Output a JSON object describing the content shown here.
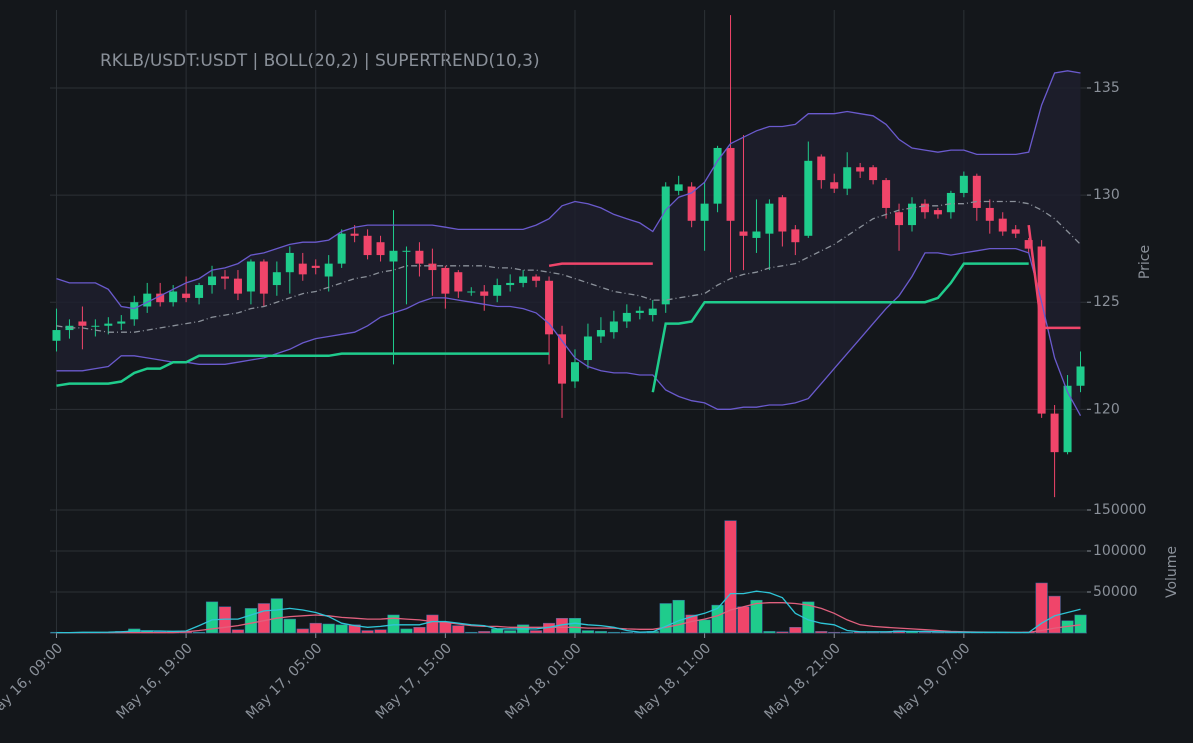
{
  "chart_data": [
    {
      "type": "candlestick",
      "title": "RKLB/USDT:USDT | BOLL(20,2) | SUPERTREND(10,3)",
      "y_label": "Price",
      "up_color": "#1fcc8c",
      "down_color": "#f0456a",
      "grid": true,
      "categories": [
        "May 16, 09:00",
        null,
        null,
        null,
        null,
        null,
        null,
        null,
        null,
        null,
        "May 16, 19:00",
        null,
        null,
        null,
        null,
        null,
        null,
        null,
        null,
        null,
        "May 17, 05:00",
        null,
        null,
        null,
        null,
        null,
        null,
        null,
        null,
        null,
        "May 17, 15:00",
        null,
        null,
        null,
        null,
        null,
        null,
        null,
        null,
        null,
        "May 18, 01:00",
        null,
        null,
        null,
        null,
        null,
        null,
        null,
        null,
        null,
        "May 18, 11:00",
        null,
        null,
        null,
        null,
        null,
        null,
        null,
        null,
        null,
        "May 18, 21:00",
        null,
        null,
        null,
        null,
        null,
        null,
        null,
        null,
        null,
        "May 19, 07:00",
        null,
        null,
        null,
        null,
        null,
        null,
        null,
        null,
        null
      ],
      "open": [
        123.2,
        123.7,
        124.1,
        123.9,
        123.9,
        124.0,
        124.2,
        124.8,
        125.4,
        125.0,
        125.4,
        125.2,
        125.8,
        126.2,
        126.1,
        125.5,
        126.9,
        125.8,
        126.4,
        126.8,
        126.7,
        126.2,
        126.8,
        128.2,
        128.1,
        127.8,
        126.9,
        127.4,
        127.4,
        126.8,
        126.6,
        126.4,
        125.5,
        125.5,
        125.3,
        125.8,
        125.9,
        126.2,
        126.0,
        123.5,
        121.3,
        122.3,
        123.4,
        123.6,
        124.1,
        124.5,
        124.4,
        124.9,
        130.2,
        130.4,
        128.8,
        129.6,
        132.2,
        128.3,
        128.0,
        128.2,
        129.9,
        128.4,
        128.1,
        131.8,
        130.6,
        130.3,
        131.3,
        131.3,
        130.7,
        129.2,
        128.6,
        129.6,
        129.3,
        129.2,
        130.1,
        130.9,
        129.4,
        128.9,
        128.4,
        127.9,
        127.6,
        119.8,
        118.0,
        121.1
      ],
      "high": [
        124.7,
        124.2,
        124.8,
        124.2,
        124.3,
        124.4,
        125.3,
        125.9,
        125.9,
        125.8,
        126.2,
        125.9,
        126.7,
        126.5,
        126.5,
        127.0,
        127.0,
        126.9,
        127.6,
        127.3,
        127.0,
        127.2,
        128.4,
        128.6,
        128.4,
        128.1,
        129.3,
        127.6,
        127.8,
        127.5,
        126.7,
        126.5,
        125.7,
        125.8,
        126.1,
        126.3,
        126.5,
        126.3,
        126.2,
        123.9,
        122.8,
        124.0,
        124.3,
        124.6,
        124.9,
        124.8,
        125.1,
        130.6,
        130.9,
        130.6,
        130.6,
        132.3,
        138.4,
        132.8,
        129.8,
        129.8,
        130.0,
        128.6,
        132.5,
        131.9,
        131.0,
        132.0,
        131.5,
        131.4,
        130.8,
        129.6,
        129.9,
        129.8,
        129.4,
        130.2,
        131.1,
        131.0,
        129.8,
        129.2,
        128.6,
        128.0,
        127.9,
        120.2,
        121.6,
        122.7
      ],
      "low": [
        122.7,
        123.3,
        122.8,
        123.4,
        123.5,
        123.7,
        123.9,
        124.5,
        124.8,
        124.8,
        125.0,
        124.9,
        125.4,
        125.6,
        125.1,
        124.9,
        124.8,
        125.3,
        125.4,
        126.0,
        126.3,
        125.5,
        126.6,
        127.8,
        127.0,
        126.9,
        122.1,
        124.9,
        126.2,
        125.3,
        124.7,
        125.2,
        125.3,
        124.6,
        125.0,
        125.5,
        125.7,
        125.7,
        122.1,
        119.6,
        121.0,
        121.9,
        123.1,
        123.3,
        123.8,
        124.2,
        124.1,
        124.5,
        130.0,
        128.5,
        127.4,
        129.2,
        126.4,
        126.5,
        127.3,
        126.5,
        127.6,
        127.2,
        128.0,
        130.3,
        130.1,
        130.0,
        130.8,
        130.5,
        128.9,
        127.4,
        128.3,
        128.9,
        128.9,
        128.9,
        129.9,
        128.8,
        128.2,
        128.1,
        128.0,
        127.3,
        119.6,
        115.9,
        117.9,
        120.8
      ],
      "close": [
        123.7,
        123.9,
        123.9,
        123.9,
        124.0,
        124.1,
        125.0,
        125.4,
        125.0,
        125.5,
        125.2,
        125.8,
        126.2,
        126.1,
        125.4,
        126.9,
        125.4,
        126.4,
        127.3,
        126.3,
        126.6,
        126.8,
        128.2,
        128.1,
        127.2,
        127.2,
        127.4,
        127.4,
        126.8,
        126.5,
        125.4,
        125.5,
        125.5,
        125.3,
        125.8,
        125.9,
        126.2,
        126.0,
        123.5,
        121.2,
        122.2,
        123.4,
        123.7,
        124.1,
        124.5,
        124.6,
        124.7,
        130.4,
        130.5,
        128.8,
        129.6,
        132.2,
        128.8,
        128.1,
        128.3,
        129.6,
        128.3,
        127.8,
        131.6,
        130.7,
        130.3,
        131.3,
        131.1,
        130.7,
        129.4,
        128.6,
        129.6,
        129.2,
        129.1,
        130.1,
        130.9,
        129.4,
        128.8,
        128.3,
        128.2,
        127.5,
        119.8,
        118.0,
        121.1,
        122.0
      ],
      "series": [
        {
          "color": "#6a5acd",
          "fill": "#1e1f2e",
          "values": [
            126.1,
            125.9,
            125.9,
            125.9,
            125.6,
            124.8,
            124.7,
            125.0,
            125.3,
            125.6,
            125.9,
            126.1,
            126.5,
            126.6,
            126.8,
            127.2,
            127.3,
            127.5,
            127.7,
            127.8,
            127.8,
            127.9,
            128.3,
            128.5,
            128.6,
            128.6,
            128.6,
            128.6,
            128.6,
            128.6,
            128.5,
            128.4,
            128.4,
            128.4,
            128.4,
            128.4,
            128.4,
            128.6,
            128.9,
            129.5,
            129.7,
            129.6,
            129.4,
            129.1,
            128.9,
            128.7,
            128.3,
            129.3,
            129.9,
            130.1,
            130.6,
            131.6,
            132.4,
            132.7,
            133.0,
            133.2,
            133.2,
            133.3,
            133.8,
            133.8,
            133.8,
            133.9,
            133.8,
            133.7,
            133.3,
            132.6,
            132.2,
            132.1,
            132.0,
            132.1,
            132.1,
            131.9,
            131.9,
            131.9,
            131.9,
            132.0,
            134.2,
            135.7,
            135.8,
            135.7
          ]
        },
        {
          "color": "#8a9099",
          "dash": "6,3,1,3",
          "values": [
            123.9,
            123.8,
            123.8,
            123.7,
            123.6,
            123.6,
            123.6,
            123.7,
            123.8,
            123.9,
            124.0,
            124.1,
            124.3,
            124.4,
            124.5,
            124.7,
            124.8,
            125.0,
            125.2,
            125.4,
            125.5,
            125.7,
            125.9,
            126.1,
            126.2,
            126.4,
            126.5,
            126.7,
            126.7,
            126.7,
            126.7,
            126.7,
            126.7,
            126.7,
            126.6,
            126.6,
            126.5,
            126.5,
            126.4,
            126.3,
            126.1,
            125.9,
            125.7,
            125.5,
            125.4,
            125.3,
            125.1,
            125.1,
            125.2,
            125.3,
            125.4,
            125.8,
            126.1,
            126.3,
            126.4,
            126.6,
            126.7,
            126.8,
            127.1,
            127.4,
            127.7,
            128.1,
            128.5,
            128.9,
            129.1,
            129.3,
            129.4,
            129.5,
            129.5,
            129.6,
            129.6,
            129.7,
            129.7,
            129.7,
            129.7,
            129.6,
            129.3,
            128.9,
            128.3,
            127.7
          ]
        },
        {
          "color": "#6a5acd",
          "values": [
            121.8,
            121.8,
            121.8,
            121.9,
            122.0,
            122.5,
            122.5,
            122.4,
            122.3,
            122.2,
            122.2,
            122.1,
            122.1,
            122.1,
            122.2,
            122.3,
            122.4,
            122.6,
            122.8,
            123.1,
            123.3,
            123.4,
            123.5,
            123.6,
            123.9,
            124.3,
            124.5,
            124.7,
            125.0,
            125.2,
            125.2,
            125.1,
            125.0,
            124.9,
            124.8,
            124.8,
            124.7,
            124.5,
            124.0,
            123.2,
            122.4,
            122.0,
            121.8,
            121.7,
            121.7,
            121.6,
            121.6,
            120.9,
            120.6,
            120.4,
            120.3,
            120.0,
            120.0,
            120.1,
            120.1,
            120.2,
            120.2,
            120.3,
            120.5,
            121.2,
            121.9,
            122.6,
            123.3,
            124.0,
            124.7,
            125.3,
            126.2,
            127.3,
            127.3,
            127.2,
            127.3,
            127.4,
            127.5,
            127.5,
            127.5,
            127.3,
            125.0,
            122.4,
            120.8,
            119.7
          ]
        },
        {
          "color": "#1fcc8c",
          "width": 2.5,
          "values": [
            121.1,
            121.2,
            121.2,
            121.2,
            121.2,
            121.3,
            121.7,
            121.9,
            121.9,
            122.2,
            122.2,
            122.5,
            122.5,
            122.5,
            122.5,
            122.5,
            122.5,
            122.5,
            122.5,
            122.5,
            122.5,
            122.5,
            122.6,
            122.6,
            122.6,
            122.6,
            122.6,
            122.6,
            122.6,
            122.6,
            122.6,
            122.6,
            122.6,
            122.6,
            122.6,
            122.6,
            122.6,
            122.6,
            122.6,
            null,
            null,
            null,
            null,
            null,
            null,
            null,
            120.8,
            124.0,
            124.0,
            124.1,
            125.0,
            125.0,
            125.0,
            125.0,
            125.0,
            125.0,
            125.0,
            125.0,
            125.0,
            125.0,
            125.0,
            125.0,
            125.0,
            125.0,
            125.0,
            125.0,
            125.0,
            125.0,
            125.2,
            125.9,
            126.8,
            126.8,
            126.8,
            126.8,
            126.8,
            126.8,
            null,
            null,
            null,
            null
          ]
        },
        {
          "color": "#f0456a",
          "width": 2.5,
          "values": [
            null,
            null,
            null,
            null,
            null,
            null,
            null,
            null,
            null,
            null,
            null,
            null,
            null,
            null,
            null,
            null,
            null,
            null,
            null,
            null,
            null,
            null,
            null,
            null,
            null,
            null,
            null,
            null,
            null,
            null,
            null,
            null,
            null,
            null,
            null,
            null,
            null,
            null,
            126.7,
            126.8,
            126.8,
            126.8,
            126.8,
            126.8,
            126.8,
            126.8,
            126.8,
            null,
            null,
            null,
            null,
            null,
            null,
            null,
            null,
            null,
            null,
            null,
            null,
            null,
            null,
            null,
            null,
            null,
            null,
            null,
            null,
            null,
            null,
            null,
            null,
            null,
            null,
            null,
            null,
            128.6,
            123.8,
            123.8,
            123.8,
            123.8
          ]
        }
      ],
      "ylim": [
        115.3,
        138.64
      ],
      "yticks": [
        120,
        125,
        130,
        135
      ]
    },
    {
      "type": "bar",
      "y_label": "Volume",
      "grid": true,
      "values": [
        1000,
        500,
        500,
        500,
        800,
        2000,
        5000,
        3000,
        1500,
        2500,
        1500,
        1000,
        38000,
        32000,
        4000,
        30000,
        36000,
        42000,
        17000,
        5000,
        12000,
        11000,
        10000,
        10000,
        3000,
        4000,
        22000,
        5000,
        7000,
        22000,
        13000,
        9000,
        1000,
        2000,
        5000,
        3000,
        10000,
        3000,
        12000,
        18000,
        18000,
        3000,
        2000,
        1000,
        1000,
        500,
        2000,
        36000,
        40000,
        22000,
        16000,
        34000,
        137000,
        32000,
        40000,
        2000,
        1500,
        7000,
        38000,
        2000,
        1000,
        800,
        1500,
        1000,
        1500,
        3000,
        2000,
        1000,
        800,
        500,
        500,
        300,
        500,
        300,
        500,
        1500,
        61000,
        45000,
        15000,
        22000
      ],
      "series": [
        {
          "color": "#e0607e",
          "values": [
            500,
            500,
            500,
            500,
            500,
            500,
            500,
            500,
            500,
            500,
            1500,
            3000,
            5000,
            7000,
            9000,
            12000,
            15000,
            18000,
            20000,
            21000,
            22000,
            21000,
            19000,
            18000,
            17000,
            17000,
            18000,
            17000,
            16000,
            14000,
            13000,
            11000,
            9000,
            8000,
            8000,
            7000,
            7000,
            7000,
            7000,
            7000,
            7000,
            6000,
            6000,
            6000,
            5000,
            4500,
            4500,
            7000,
            10000,
            14000,
            17000,
            21000,
            28000,
            32000,
            36000,
            37000,
            37000,
            36000,
            34000,
            30000,
            24000,
            16000,
            10000,
            8000,
            7000,
            6000,
            5000,
            4000,
            3000,
            2000,
            1500,
            1200,
            1000,
            900,
            800,
            800,
            3000,
            6000,
            8000,
            10000
          ]
        },
        {
          "color": "#2ec4d6",
          "values": [
            500,
            500,
            800,
            800,
            1000,
            1500,
            2500,
            2500,
            2500,
            2000,
            2500,
            9000,
            16000,
            17000,
            17000,
            22000,
            27000,
            28000,
            30000,
            28000,
            25000,
            20000,
            12000,
            9000,
            7000,
            8000,
            10000,
            10000,
            10000,
            14000,
            14000,
            12000,
            10000,
            9000,
            5000,
            5000,
            5000,
            5000,
            7000,
            10000,
            12000,
            10000,
            9000,
            7000,
            3000,
            1000,
            1500,
            8000,
            15000,
            20000,
            24000,
            30000,
            48000,
            48000,
            51000,
            49000,
            43000,
            24000,
            16000,
            12000,
            10000,
            3000,
            1500,
            1500,
            1500,
            2000,
            2000,
            2000,
            1500,
            1000,
            1000,
            800,
            800,
            800,
            600,
            600,
            12000,
            21000,
            25000,
            29000
          ]
        }
      ],
      "ylim": [
        0,
        150000
      ],
      "yticks": [
        50000,
        100000,
        150000
      ]
    }
  ]
}
